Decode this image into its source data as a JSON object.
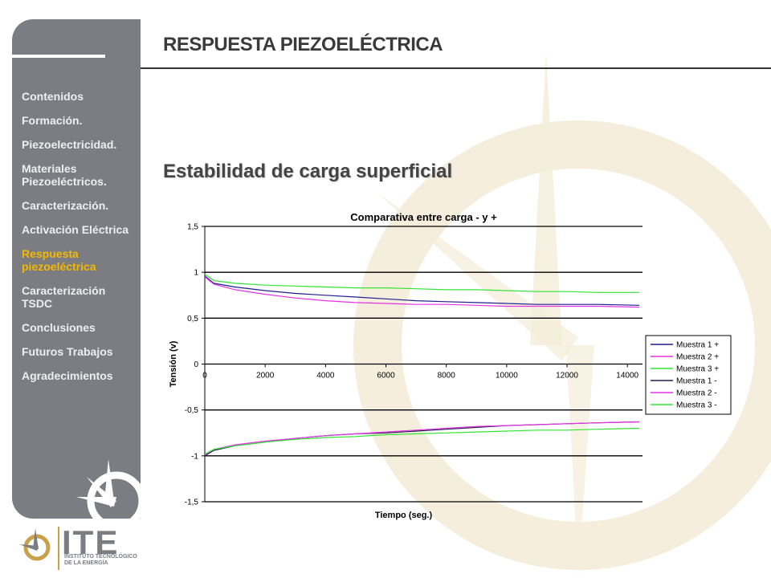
{
  "header": {
    "title": "RESPUESTA PIEZOELÉCTRICA"
  },
  "section": {
    "subtitle": "Estabilidad de carga superficial"
  },
  "sidebar": {
    "items": [
      {
        "label": "Contenidos",
        "active": false
      },
      {
        "label": "Formación.",
        "active": false
      },
      {
        "label": "Piezoelectricidad.",
        "active": false
      },
      {
        "label": "Materiales Piezoeléctricos.",
        "active": false
      },
      {
        "label": "Caracterización.",
        "active": false
      },
      {
        "label": "Activación Eléctrica",
        "active": false
      },
      {
        "label": "Respuesta piezoeléctrica",
        "active": true
      },
      {
        "label": "Caracterización TSDC",
        "active": false
      },
      {
        "label": "Conclusiones",
        "active": false
      },
      {
        "label": "Futuros Trabajos",
        "active": false
      },
      {
        "label": "Agradecimientos",
        "active": false
      }
    ],
    "active_color": "#f5b800",
    "background_color": "#7b7d82"
  },
  "logo": {
    "name": "ITE",
    "subtitle": "INSTITUTO TECNOLÓGICO DE LA ENERGÍA"
  },
  "chart_data": {
    "type": "line",
    "title": "Comparativa entre carga - y +",
    "xlabel": "Tiempo (seg.)",
    "ylabel": "Tensión (v)",
    "xlim": [
      0,
      14500
    ],
    "ylim": [
      -1.5,
      1.5
    ],
    "x_ticks": [
      "0",
      "2000",
      "4000",
      "6000",
      "8000",
      "10000",
      "12000",
      "14000"
    ],
    "y_ticks": [
      "1,5",
      "1",
      "0,5",
      "0",
      "-0,5",
      "-1",
      "-1,5"
    ],
    "grid": "horizontal",
    "legend_position": "right",
    "series": [
      {
        "name": "Muestra 1 +",
        "color": "#1f1f8c",
        "x": [
          0,
          300,
          1000,
          2000,
          3000,
          4000,
          5000,
          6000,
          7000,
          8000,
          9000,
          10000,
          11000,
          12000,
          13000,
          14400
        ],
        "y": [
          0.96,
          0.88,
          0.84,
          0.8,
          0.77,
          0.75,
          0.73,
          0.71,
          0.69,
          0.68,
          0.67,
          0.66,
          0.65,
          0.65,
          0.65,
          0.64
        ]
      },
      {
        "name": "Muestra 2 +",
        "color": "#e533e5",
        "x": [
          0,
          300,
          1000,
          2000,
          3000,
          4000,
          5000,
          6000,
          7000,
          8000,
          9000,
          10000,
          11000,
          12000,
          13000,
          14400
        ],
        "y": [
          0.95,
          0.87,
          0.81,
          0.76,
          0.72,
          0.69,
          0.67,
          0.66,
          0.65,
          0.65,
          0.64,
          0.63,
          0.63,
          0.63,
          0.63,
          0.62
        ]
      },
      {
        "name": "Muestra 3 +",
        "color": "#33e533",
        "x": [
          0,
          300,
          1000,
          2000,
          3000,
          4000,
          5000,
          6000,
          7000,
          8000,
          9000,
          10000,
          11000,
          12000,
          13000,
          14400
        ],
        "y": [
          0.98,
          0.91,
          0.88,
          0.86,
          0.85,
          0.84,
          0.83,
          0.83,
          0.82,
          0.81,
          0.81,
          0.8,
          0.79,
          0.79,
          0.78,
          0.78
        ]
      },
      {
        "name": "Muestra 1 -",
        "color": "#1f1f4c",
        "x": [
          0,
          300,
          1000,
          2000,
          3000,
          4000,
          5000,
          6000,
          7000,
          8000,
          9000,
          10000,
          11000,
          12000,
          13000,
          14400
        ],
        "y": [
          -1.0,
          -0.94,
          -0.89,
          -0.85,
          -0.81,
          -0.78,
          -0.76,
          -0.75,
          -0.73,
          -0.71,
          -0.69,
          -0.67,
          -0.66,
          -0.65,
          -0.64,
          -0.63
        ]
      },
      {
        "name": "Muestra 2 -",
        "color": "#e533e5",
        "x": [
          0,
          300,
          1000,
          2000,
          3000,
          4000,
          5000,
          6000,
          7000,
          8000,
          9000,
          10000,
          11000,
          12000,
          13000,
          14400
        ],
        "y": [
          -0.99,
          -0.93,
          -0.88,
          -0.84,
          -0.81,
          -0.78,
          -0.76,
          -0.74,
          -0.72,
          -0.7,
          -0.68,
          -0.67,
          -0.66,
          -0.65,
          -0.64,
          -0.63
        ]
      },
      {
        "name": "Muestra 3 -",
        "color": "#33e533",
        "x": [
          0,
          300,
          1000,
          2000,
          3000,
          4000,
          5000,
          6000,
          7000,
          8000,
          9000,
          10000,
          11000,
          12000,
          13000,
          14400
        ],
        "y": [
          -0.98,
          -0.93,
          -0.89,
          -0.85,
          -0.82,
          -0.8,
          -0.79,
          -0.77,
          -0.76,
          -0.75,
          -0.74,
          -0.73,
          -0.72,
          -0.72,
          -0.71,
          -0.7
        ]
      }
    ]
  }
}
